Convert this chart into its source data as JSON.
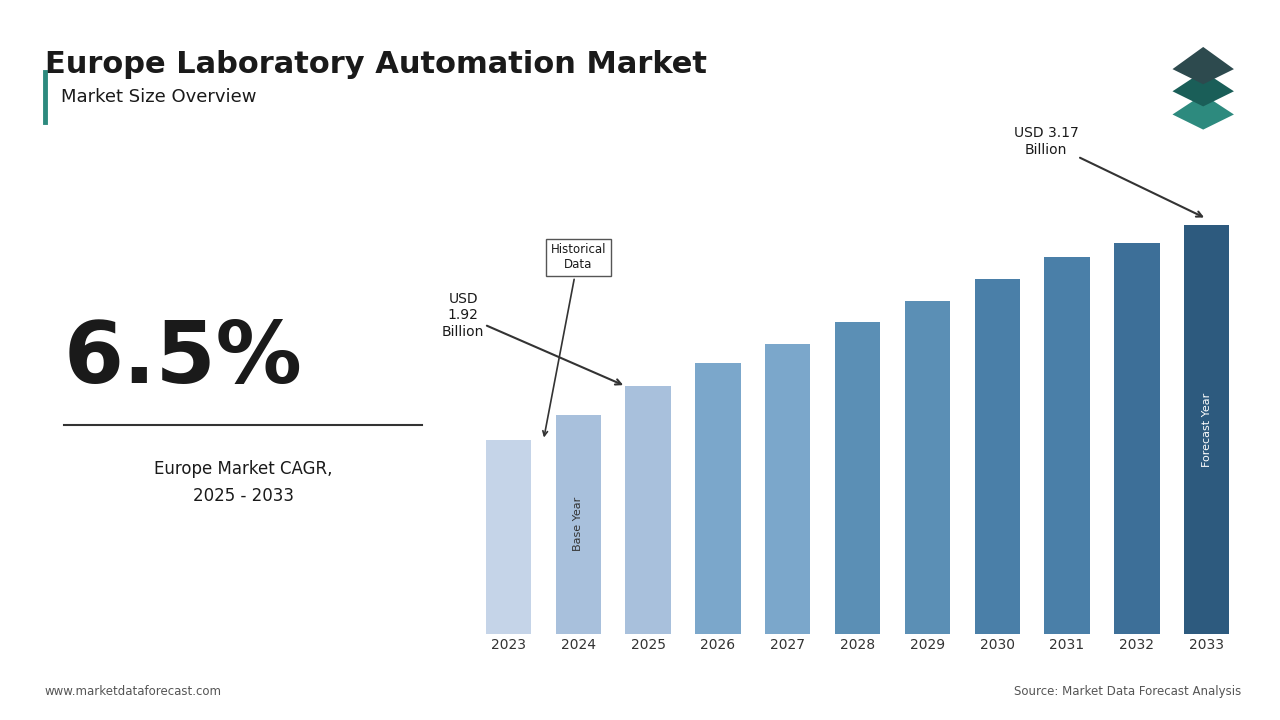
{
  "title": "Europe Laboratory Automation Market",
  "subtitle": "Market Size Overview",
  "years": [
    2023,
    2024,
    2025,
    2026,
    2027,
    2028,
    2029,
    2030,
    2031,
    2032,
    2033
  ],
  "values": [
    1.5,
    1.7,
    1.92,
    2.1,
    2.25,
    2.42,
    2.58,
    2.75,
    2.92,
    3.03,
    3.17
  ],
  "bar_colors": [
    "#c5d4e8",
    "#a8c0dc",
    "#a8c0dc",
    "#7ba7cb",
    "#7ba7cb",
    "#5b8fb5",
    "#5b8fb5",
    "#4a7fa8",
    "#4a7fa8",
    "#3d6f98",
    "#2d5a7e"
  ],
  "cagr_text": "6.5%",
  "cagr_label": "Europe Market CAGR,\n2025 - 2033",
  "annotation_1992_text": "USD\n1.92\nBillion",
  "annotation_317_text": "USD 3.17\nBillion",
  "historical_data_label": "Historical\nData",
  "base_year_label": "Base Year",
  "forecast_year_label": "Forecast Year",
  "footer_left": "www.marketdataforecast.com",
  "footer_right": "Source: Market Data Forecast Analysis",
  "background_color": "#ffffff",
  "title_color": "#1a1a1a",
  "bar_edge_color": "none",
  "ylabel_color": "#555555",
  "ylim": [
    0,
    3.8
  ]
}
